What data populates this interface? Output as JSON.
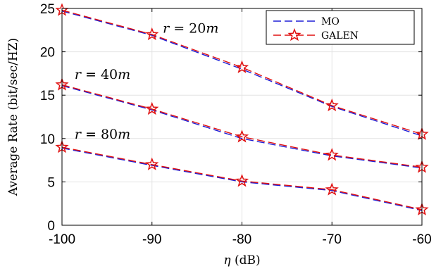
{
  "chart_data": {
    "type": "line",
    "xlabel_symbol": "η",
    "xlabel_unit": " (dB)",
    "ylabel": "Average Rate (bit/sec/HZ)",
    "xlim": [
      -100,
      -60
    ],
    "ylim": [
      0,
      25
    ],
    "xticks": [
      -100,
      -90,
      -80,
      -70,
      -60
    ],
    "yticks": [
      0,
      5,
      10,
      15,
      20,
      25
    ],
    "grid": true,
    "legend_position": "top-right",
    "x": [
      -100,
      -90,
      -80,
      -70,
      -60
    ],
    "series": [
      {
        "name": "MO",
        "color": "#1f1fd6",
        "marker": "none",
        "dash": "dashed",
        "group": "r = 20m",
        "values": [
          24.7,
          21.9,
          18.0,
          13.7,
          10.3
        ]
      },
      {
        "name": "GALEN",
        "color": "#e01010",
        "marker": "star",
        "dash": "dashed",
        "group": "r = 20m",
        "values": [
          24.8,
          22.0,
          18.2,
          13.8,
          10.5
        ]
      },
      {
        "name": "MO",
        "color": "#1f1fd6",
        "marker": "none",
        "dash": "dashed",
        "group": "r = 40m",
        "values": [
          16.1,
          13.3,
          10.0,
          8.0,
          6.6
        ]
      },
      {
        "name": "GALEN",
        "color": "#e01010",
        "marker": "star",
        "dash": "dashed",
        "group": "r = 40m",
        "values": [
          16.2,
          13.4,
          10.2,
          8.1,
          6.7
        ]
      },
      {
        "name": "MO",
        "color": "#1f1fd6",
        "marker": "none",
        "dash": "dashed",
        "group": "r = 80m",
        "values": [
          8.9,
          6.9,
          5.0,
          4.0,
          1.7
        ]
      },
      {
        "name": "GALEN",
        "color": "#e01010",
        "marker": "star",
        "dash": "dashed",
        "group": "r = 80m",
        "values": [
          9.0,
          7.0,
          5.1,
          4.1,
          1.8
        ]
      }
    ],
    "annotations": [
      {
        "prefix": "r",
        "text": " = 20",
        "suffix": "m",
        "x": -88.8,
        "y": 22.2
      },
      {
        "prefix": "r",
        "text": " = 40",
        "suffix": "m",
        "x": -98.6,
        "y": 16.9
      },
      {
        "prefix": "r",
        "text": " = 80",
        "suffix": "m",
        "x": -98.6,
        "y": 10.0
      }
    ],
    "legend": [
      {
        "label": "MO",
        "color": "#1f1fd6",
        "marker": "none"
      },
      {
        "label": "GALEN",
        "color": "#e01010",
        "marker": "star"
      }
    ]
  }
}
